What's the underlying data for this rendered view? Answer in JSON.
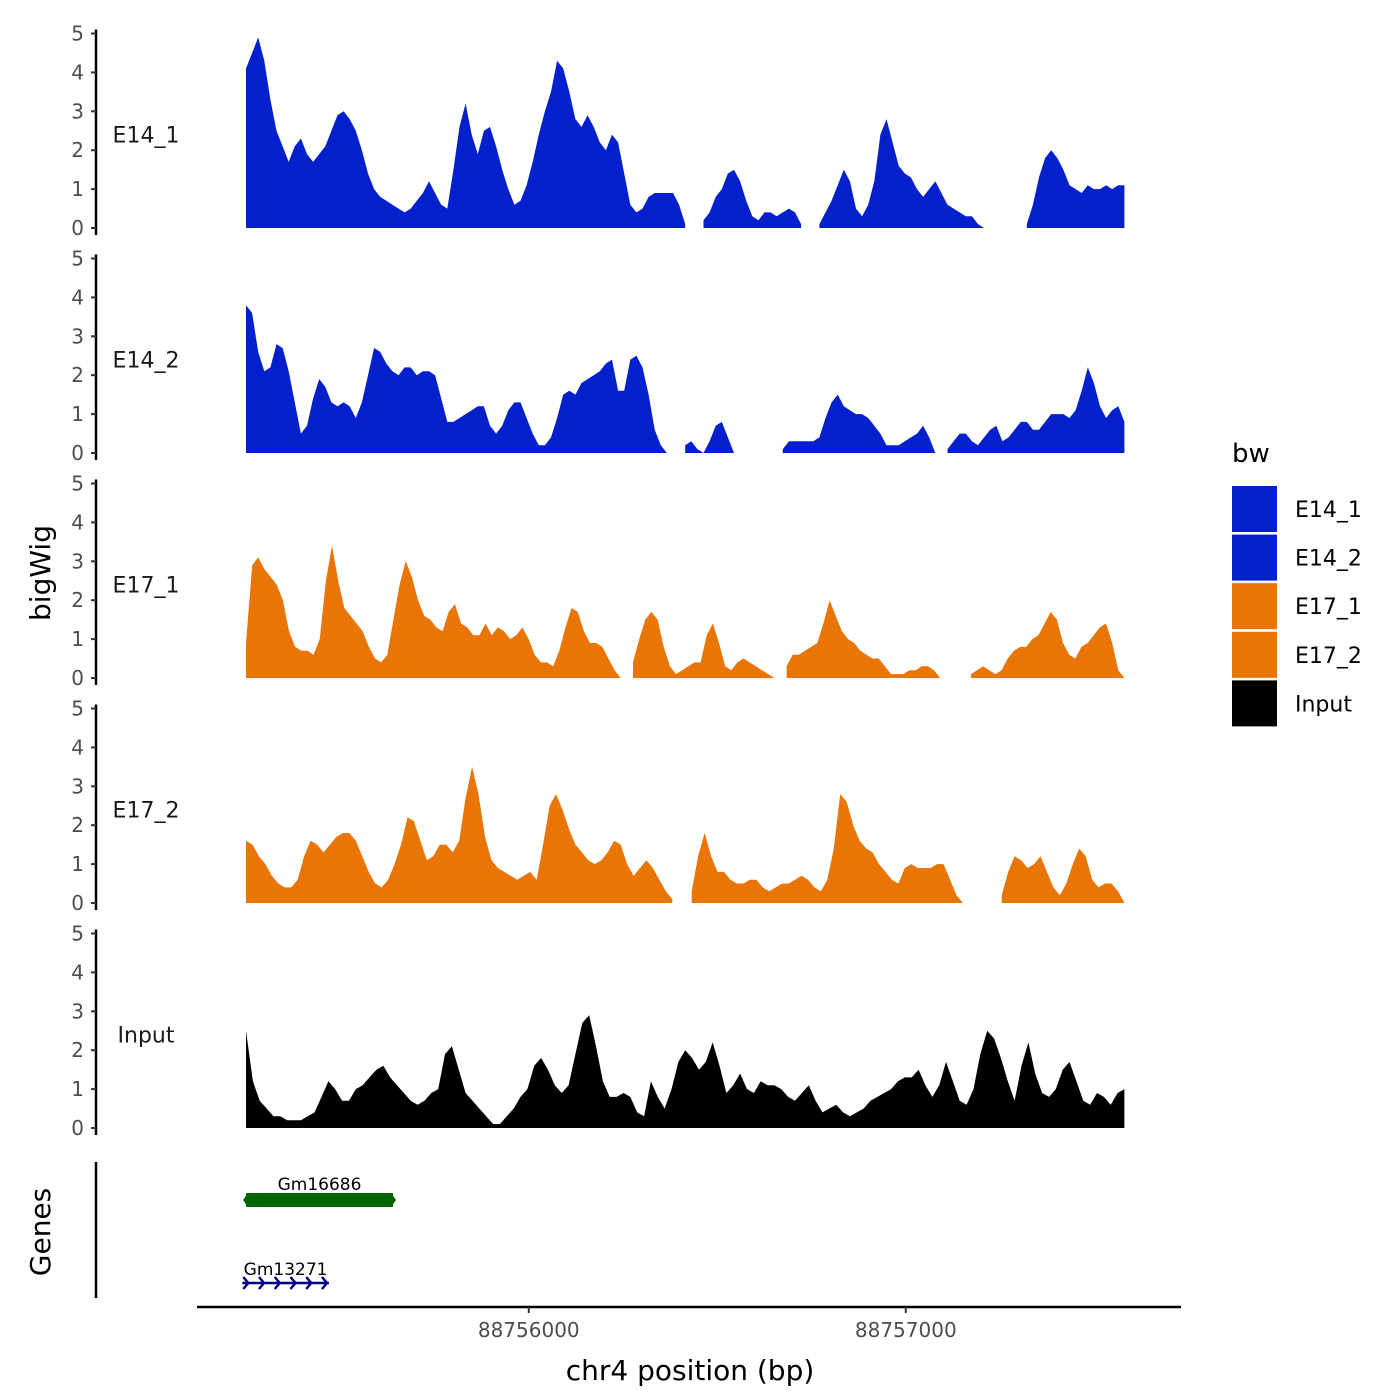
{
  "chart_data": {
    "type": "area",
    "title": "",
    "ylabel": "bigWig",
    "genes_label": "Genes",
    "xlabel": "chr4 position (bp)",
    "x_range": [
      88755250,
      88757580
    ],
    "x_lim": [
      88755120,
      88757730
    ],
    "x_ticks": [
      {
        "value": 88756000,
        "label": "88756000"
      },
      {
        "value": 88757000,
        "label": "88757000"
      }
    ],
    "ylim": [
      0,
      5
    ],
    "y_ticks": [
      "0",
      "1",
      "2",
      "3",
      "4",
      "5"
    ],
    "legend": {
      "title": "bw",
      "items": [
        {
          "label": "E14_1",
          "color": "#0320CC"
        },
        {
          "label": "E14_2",
          "color": "#0320CC"
        },
        {
          "label": "E17_1",
          "color": "#E87506"
        },
        {
          "label": "E17_2",
          "color": "#E87506"
        },
        {
          "label": "Input",
          "color": "#000000"
        }
      ]
    },
    "series": [
      {
        "name": "E14_1",
        "color": "#0320CC",
        "values": [
          4.1,
          4.5,
          4.9,
          4.3,
          3.3,
          2.5,
          2.1,
          1.7,
          2.1,
          2.3,
          1.9,
          1.7,
          1.9,
          2.1,
          2.5,
          2.9,
          3.0,
          2.8,
          2.5,
          2.0,
          1.4,
          1.0,
          0.8,
          0.7,
          0.6,
          0.5,
          0.4,
          0.5,
          0.7,
          0.9,
          1.2,
          0.9,
          0.6,
          0.5,
          1.5,
          2.6,
          3.2,
          2.4,
          1.9,
          2.5,
          2.6,
          2.1,
          1.5,
          1.0,
          0.6,
          0.7,
          1.1,
          1.7,
          2.4,
          3.0,
          3.5,
          4.3,
          4.1,
          3.5,
          2.8,
          2.6,
          2.9,
          2.6,
          2.2,
          2.0,
          2.4,
          2.2,
          1.4,
          0.6,
          0.4,
          0.5,
          0.8,
          0.9,
          0.9,
          0.9,
          0.9,
          0.6,
          0.1,
          null,
          null,
          0.2,
          0.4,
          0.8,
          1.0,
          1.4,
          1.5,
          1.2,
          0.7,
          0.3,
          0.2,
          0.4,
          0.4,
          0.3,
          0.4,
          0.5,
          0.4,
          0.1,
          null,
          null,
          0.1,
          0.4,
          0.7,
          1.1,
          1.5,
          1.2,
          0.5,
          0.3,
          0.6,
          1.2,
          2.4,
          2.8,
          2.2,
          1.6,
          1.4,
          1.3,
          1.0,
          0.8,
          1.0,
          1.2,
          0.9,
          0.6,
          0.5,
          0.4,
          0.3,
          0.3,
          0.1,
          0,
          null,
          null,
          null,
          null,
          null,
          null,
          0.1,
          0.6,
          1.3,
          1.8,
          2.0,
          1.8,
          1.5,
          1.1,
          1.0,
          0.9,
          1.1,
          1.0,
          1.0,
          1.1,
          1.0,
          1.1,
          1.1
        ]
      },
      {
        "name": "E14_2",
        "color": "#0320CC",
        "values": [
          3.8,
          3.6,
          2.6,
          2.1,
          2.2,
          2.8,
          2.7,
          2.1,
          1.3,
          0.5,
          0.7,
          1.4,
          1.9,
          1.7,
          1.3,
          1.2,
          1.3,
          1.2,
          0.9,
          1.3,
          2.0,
          2.7,
          2.6,
          2.3,
          2.1,
          2.0,
          2.2,
          2.2,
          2.0,
          2.1,
          2.1,
          2.0,
          1.4,
          0.8,
          0.8,
          0.9,
          1.0,
          1.1,
          1.2,
          1.2,
          0.7,
          0.5,
          0.7,
          1.1,
          1.3,
          1.3,
          0.9,
          0.5,
          0.2,
          0.2,
          0.4,
          0.9,
          1.5,
          1.6,
          1.5,
          1.8,
          1.9,
          2.0,
          2.1,
          2.3,
          2.4,
          1.6,
          1.6,
          2.4,
          2.5,
          2.2,
          1.5,
          0.6,
          0.2,
          0,
          null,
          null,
          0.2,
          0.3,
          0.1,
          0,
          0.3,
          0.7,
          0.8,
          0.4,
          0,
          null,
          null,
          null,
          null,
          null,
          null,
          null,
          0.1,
          0.3,
          0.3,
          0.3,
          0.3,
          0.3,
          0.4,
          0.9,
          1.3,
          1.5,
          1.2,
          1.1,
          1.0,
          1.0,
          0.9,
          0.7,
          0.5,
          0.2,
          0.2,
          0.2,
          0.3,
          0.4,
          0.5,
          0.7,
          0.4,
          0,
          null,
          0.1,
          0.3,
          0.5,
          0.5,
          0.3,
          0.2,
          0.4,
          0.6,
          0.7,
          0.3,
          0.4,
          0.6,
          0.8,
          0.8,
          0.6,
          0.6,
          0.8,
          1.0,
          1.0,
          1.0,
          0.9,
          1.1,
          1.6,
          2.2,
          1.8,
          1.2,
          0.9,
          1.1,
          1.2,
          0.8
        ]
      },
      {
        "name": "E17_1",
        "color": "#E87506",
        "values": [
          0.9,
          2.9,
          3.1,
          2.8,
          2.6,
          2.4,
          2.0,
          1.2,
          0.8,
          0.7,
          0.7,
          0.6,
          1.0,
          2.5,
          3.4,
          2.5,
          1.8,
          1.6,
          1.4,
          1.2,
          0.8,
          0.5,
          0.4,
          0.6,
          1.5,
          2.4,
          3.0,
          2.6,
          2.0,
          1.6,
          1.5,
          1.3,
          1.2,
          1.7,
          1.9,
          1.4,
          1.3,
          1.1,
          1.1,
          1.4,
          1.1,
          1.3,
          1.2,
          1.0,
          1.1,
          1.3,
          1.0,
          0.6,
          0.4,
          0.4,
          0.3,
          0.7,
          1.3,
          1.8,
          1.7,
          1.2,
          0.9,
          0.9,
          0.8,
          0.5,
          0.2,
          0,
          null,
          0.4,
          1.0,
          1.5,
          1.7,
          1.5,
          0.8,
          0.3,
          0.1,
          0.2,
          0.3,
          0.4,
          0.4,
          1.1,
          1.4,
          0.9,
          0.3,
          0.2,
          0.4,
          0.5,
          0.4,
          0.3,
          0.2,
          0.1,
          0,
          null,
          0.3,
          0.6,
          0.6,
          0.7,
          0.8,
          0.9,
          1.4,
          2.0,
          1.6,
          1.2,
          1.0,
          0.9,
          0.7,
          0.6,
          0.5,
          0.5,
          0.3,
          0.1,
          0.1,
          0.1,
          0.2,
          0.2,
          0.3,
          0.3,
          0.2,
          0,
          null,
          null,
          null,
          null,
          0.1,
          0.2,
          0.3,
          0.2,
          0.1,
          0.2,
          0.5,
          0.7,
          0.8,
          0.8,
          1.0,
          1.1,
          1.4,
          1.7,
          1.5,
          0.9,
          0.6,
          0.5,
          0.8,
          0.9,
          1.1,
          1.3,
          1.4,
          0.9,
          0.2,
          0
        ]
      },
      {
        "name": "E17_2",
        "color": "#E87506",
        "values": [
          1.6,
          1.5,
          1.2,
          1.0,
          0.7,
          0.5,
          0.4,
          0.4,
          0.6,
          1.2,
          1.6,
          1.5,
          1.3,
          1.5,
          1.7,
          1.8,
          1.8,
          1.6,
          1.2,
          0.8,
          0.5,
          0.4,
          0.6,
          1.0,
          1.5,
          2.2,
          2.1,
          1.6,
          1.1,
          1.2,
          1.5,
          1.5,
          1.3,
          1.6,
          2.7,
          3.5,
          2.8,
          1.7,
          1.1,
          0.9,
          0.8,
          0.7,
          0.6,
          0.7,
          0.8,
          0.6,
          1.5,
          2.5,
          2.8,
          2.4,
          1.9,
          1.5,
          1.3,
          1.1,
          1.0,
          1.1,
          1.3,
          1.6,
          1.5,
          1.0,
          0.7,
          0.9,
          1.1,
          0.9,
          0.6,
          0.3,
          0.1,
          null,
          null,
          0.3,
          1.2,
          1.8,
          1.2,
          0.8,
          0.8,
          0.6,
          0.5,
          0.5,
          0.6,
          0.6,
          0.4,
          0.3,
          0.4,
          0.5,
          0.5,
          0.6,
          0.7,
          0.6,
          0.4,
          0.3,
          0.6,
          1.4,
          2.8,
          2.6,
          2.0,
          1.6,
          1.4,
          1.3,
          1.0,
          0.8,
          0.6,
          0.5,
          0.9,
          1.0,
          0.9,
          0.9,
          0.9,
          1.0,
          1.0,
          0.6,
          0.2,
          0,
          null,
          null,
          null,
          null,
          null,
          0.2,
          0.8,
          1.2,
          1.1,
          0.9,
          1.0,
          1.2,
          0.8,
          0.4,
          0.2,
          0.5,
          1.0,
          1.4,
          1.2,
          0.6,
          0.4,
          0.5,
          0.5,
          0.3,
          0
        ]
      },
      {
        "name": "Input",
        "color": "#000000",
        "values": [
          2.5,
          1.2,
          0.7,
          0.5,
          0.3,
          0.3,
          0.2,
          0.2,
          0.2,
          0.3,
          0.4,
          0.8,
          1.2,
          1.0,
          0.7,
          0.7,
          1.0,
          1.1,
          1.3,
          1.5,
          1.6,
          1.3,
          1.1,
          0.9,
          0.7,
          0.6,
          0.7,
          0.9,
          1.0,
          1.9,
          2.1,
          1.5,
          0.9,
          0.7,
          0.5,
          0.3,
          0.1,
          0.1,
          0.3,
          0.5,
          0.8,
          1.0,
          1.6,
          1.8,
          1.5,
          1.1,
          0.9,
          1.1,
          1.9,
          2.7,
          2.9,
          2.1,
          1.2,
          0.8,
          0.8,
          0.9,
          0.8,
          0.4,
          0.3,
          1.2,
          0.8,
          0.5,
          1.0,
          1.7,
          2.0,
          1.8,
          1.5,
          1.7,
          2.2,
          1.6,
          0.9,
          1.1,
          1.4,
          1.0,
          0.9,
          1.2,
          1.1,
          1.1,
          1.0,
          0.8,
          0.7,
          0.9,
          1.1,
          0.7,
          0.4,
          0.5,
          0.6,
          0.4,
          0.3,
          0.4,
          0.5,
          0.7,
          0.8,
          0.9,
          1.0,
          1.2,
          1.3,
          1.3,
          1.5,
          1.1,
          0.8,
          1.1,
          1.7,
          1.2,
          0.7,
          0.6,
          1.0,
          1.9,
          2.5,
          2.3,
          1.8,
          1.2,
          0.7,
          1.6,
          2.2,
          1.4,
          0.9,
          0.8,
          1.0,
          1.5,
          1.7,
          1.2,
          0.7,
          0.6,
          0.9,
          0.8,
          0.6,
          0.9,
          1.0
        ]
      }
    ],
    "genes": [
      {
        "name": "Gm16686",
        "start": 88755250,
        "end": 88755640,
        "strand": "*",
        "color": "#006400"
      },
      {
        "name": "Gm13271",
        "start": 88755240,
        "end": 88755470,
        "strand": "+",
        "color": "#00008B"
      }
    ]
  }
}
